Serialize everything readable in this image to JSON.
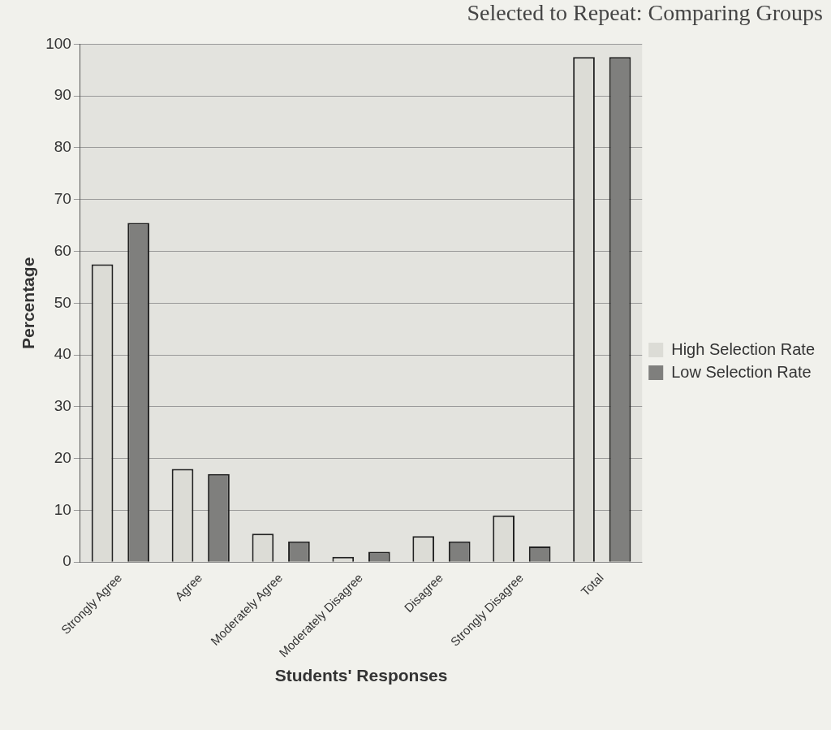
{
  "chart_data": {
    "type": "bar",
    "title": "Selected to Repeat: Comparing Groups",
    "xlabel": "Students' Responses",
    "ylabel": "Percentage",
    "categories": [
      "Strongly Agree",
      "Agree",
      "Moderately Agree",
      "Moderately Disagree",
      "Disagree",
      "Strongly Disagree",
      "Total"
    ],
    "series": [
      {
        "name": "High Selection Rate",
        "color": "#dcdcd6",
        "values": [
          57.5,
          18,
          5.5,
          1,
          5,
          9,
          97.5
        ]
      },
      {
        "name": "Low Selection Rate",
        "color": "#7f7f7d",
        "values": [
          65.5,
          17,
          4,
          2,
          4,
          3,
          97.5
        ]
      }
    ],
    "ylim": [
      0,
      100
    ],
    "yticks": [
      0,
      10,
      20,
      30,
      40,
      50,
      60,
      70,
      80,
      90,
      100
    ],
    "grid": "y",
    "legend": "right"
  }
}
